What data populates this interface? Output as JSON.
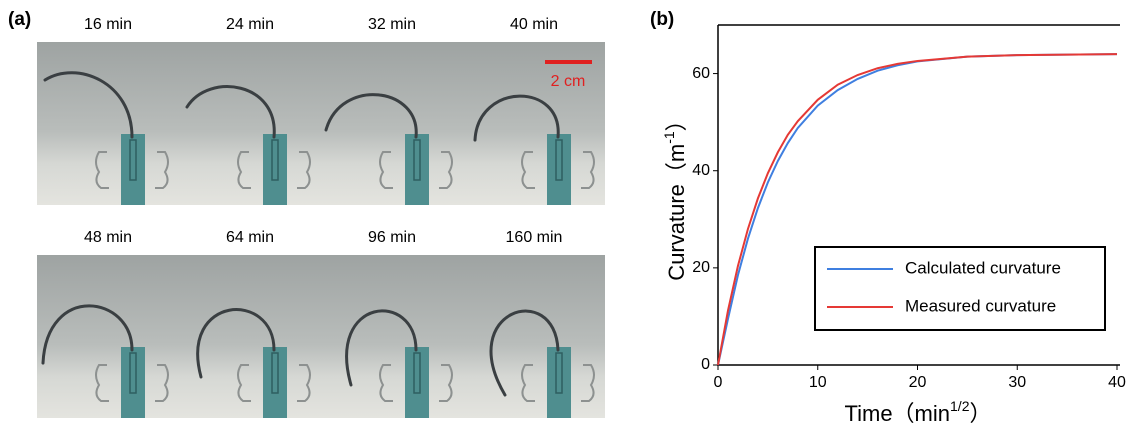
{
  "panel_a": {
    "label": "(a)",
    "scale_bar": "2 cm",
    "photos": [
      "16 min",
      "24 min",
      "32 min",
      "40 min",
      "48 min",
      "64 min",
      "96 min",
      "160 min"
    ]
  },
  "chart_data": {
    "type": "line",
    "panel_label": "(b)",
    "xlabel": "Time（min",
    "xlabel_sup": "1/2",
    "xlabel_end": "）",
    "ylabel": "Curvature（m",
    "ylabel_sup": "-1",
    "ylabel_end": "）",
    "x": [
      0,
      1,
      2,
      3,
      4,
      5,
      6,
      7,
      8,
      10,
      12,
      14,
      16,
      18,
      20,
      25,
      30,
      35,
      40
    ],
    "series": [
      {
        "name": "Calculated curvature",
        "color": "#3f7fe0",
        "values": [
          0,
          9.5,
          18.5,
          26.0,
          32.3,
          37.6,
          42.0,
          45.7,
          48.8,
          53.4,
          56.6,
          58.9,
          60.6,
          61.7,
          62.5,
          63.5,
          63.8,
          63.9,
          64.0
        ]
      },
      {
        "name": "Measured curvature",
        "color": "#e53935",
        "values": [
          0,
          11.2,
          20.4,
          28.0,
          34.3,
          39.5,
          43.8,
          47.4,
          50.2,
          54.6,
          57.7,
          59.7,
          61.1,
          62.0,
          62.6,
          63.5,
          63.8,
          63.9,
          64.0
        ]
      }
    ],
    "xlim": [
      0,
      40
    ],
    "ylim": [
      0,
      70
    ],
    "xticks": [
      0,
      10,
      20,
      30,
      40
    ],
    "yticks": [
      0,
      20,
      40,
      60
    ],
    "legend": "lower right"
  }
}
